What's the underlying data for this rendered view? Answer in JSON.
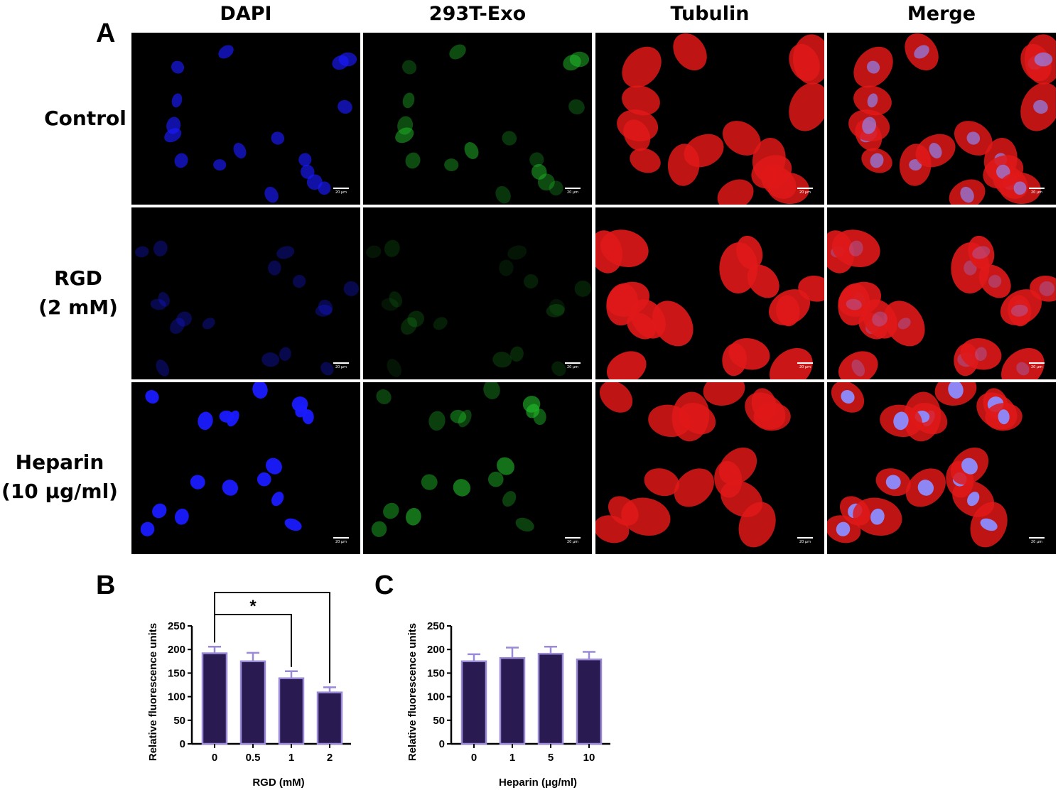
{
  "panel_labels": {
    "a": "A",
    "b": "B",
    "c": "C"
  },
  "columns": [
    "DAPI",
    "293T-Exo",
    "Tubulin",
    "Merge"
  ],
  "rows": [
    {
      "line1": "Control",
      "line2": ""
    },
    {
      "line1": "RGD",
      "line2": "(2 mM)"
    },
    {
      "line1": "Heparin",
      "line2": "(10 μg/ml)"
    }
  ],
  "scale_bar_text": "20 μm",
  "channel_colors": {
    "dapi": "#1a1aff",
    "exo": "#22c22a",
    "tubulin": "#e01818",
    "merge_nucleus": "#8a8cff"
  },
  "chart_data": [
    {
      "type": "bar",
      "panel": "B",
      "categories": [
        "0",
        "0.5",
        "1",
        "2"
      ],
      "values": [
        192,
        175,
        139,
        109
      ],
      "errors": [
        14,
        18,
        15,
        11
      ],
      "xlabel": "RGD (mM)",
      "ylabel": "Relative fluorescence units",
      "ylim": [
        0,
        250
      ],
      "yticks": [
        "0",
        "50",
        "100",
        "150",
        "200",
        "250"
      ],
      "significance": [
        {
          "from": "0",
          "to": "1",
          "label": "*"
        },
        {
          "from": "0",
          "to": "2",
          "label": "*"
        }
      ],
      "bar_color": "#2a1a52",
      "edge_color": "#9b8ad6"
    },
    {
      "type": "bar",
      "panel": "C",
      "categories": [
        "0",
        "1",
        "5",
        "10"
      ],
      "values": [
        175,
        182,
        191,
        179
      ],
      "errors": [
        15,
        22,
        15,
        16
      ],
      "xlabel": "Heparin (μg/ml)",
      "ylabel": "Relative fluorescence units",
      "ylim": [
        0,
        250
      ],
      "yticks": [
        "0",
        "50",
        "100",
        "150",
        "200",
        "250"
      ],
      "significance": [],
      "bar_color": "#2a1a52",
      "edge_color": "#9b8ad6"
    }
  ]
}
